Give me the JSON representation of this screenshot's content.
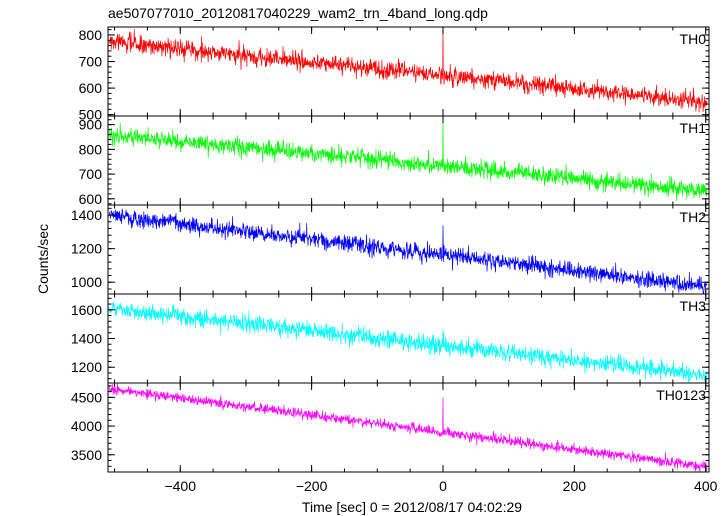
{
  "chart_data": {
    "type": "line",
    "title": "ae507077010_20120817040229_wam2_trn_4band_long.qdp",
    "xlabel": "Time [sec] 0 = 2012/08/17 04:02:29",
    "ylabel": "Counts/sec",
    "xlim": [
      -510,
      405
    ],
    "xticks": [
      -400,
      -200,
      0,
      200,
      400
    ],
    "grid": false,
    "panels": [
      {
        "name": "TH0",
        "color": "#ff0000",
        "ylim": [
          495,
          830
        ],
        "yticks": [
          500,
          600,
          700,
          800
        ],
        "start": 775,
        "end": 548,
        "noise": 30,
        "spike_time": 0,
        "spike_value": 825
      },
      {
        "name": "TH1",
        "color": "#00ff00",
        "ylim": [
          575,
          935
        ],
        "yticks": [
          600,
          700,
          800,
          900
        ],
        "start": 860,
        "end": 632,
        "noise": 30,
        "spike_time": 0,
        "spike_value": 915
      },
      {
        "name": "TH2",
        "color": "#0000ff",
        "ylim": [
          930,
          1460
        ],
        "yticks": [
          1000,
          1200,
          1400
        ],
        "start": 1400,
        "end": 975,
        "noise": 45,
        "spike_time": 0,
        "spike_value": 1340
      },
      {
        "name": "TH3",
        "color": "#00ffff",
        "ylim": [
          1090,
          1710
        ],
        "yticks": [
          1200,
          1400,
          1600
        ],
        "start": 1610,
        "end": 1145,
        "noise": 55,
        "spike_time": 0,
        "spike_value": 1470
      },
      {
        "name": "TH0123",
        "color": "#ff00ff",
        "ylim": [
          3200,
          4750
        ],
        "yticks": [
          3500,
          4000,
          4500
        ],
        "start": 4650,
        "end": 3290,
        "noise": 80,
        "spike_time": 0,
        "spike_value": 4500
      }
    ]
  }
}
